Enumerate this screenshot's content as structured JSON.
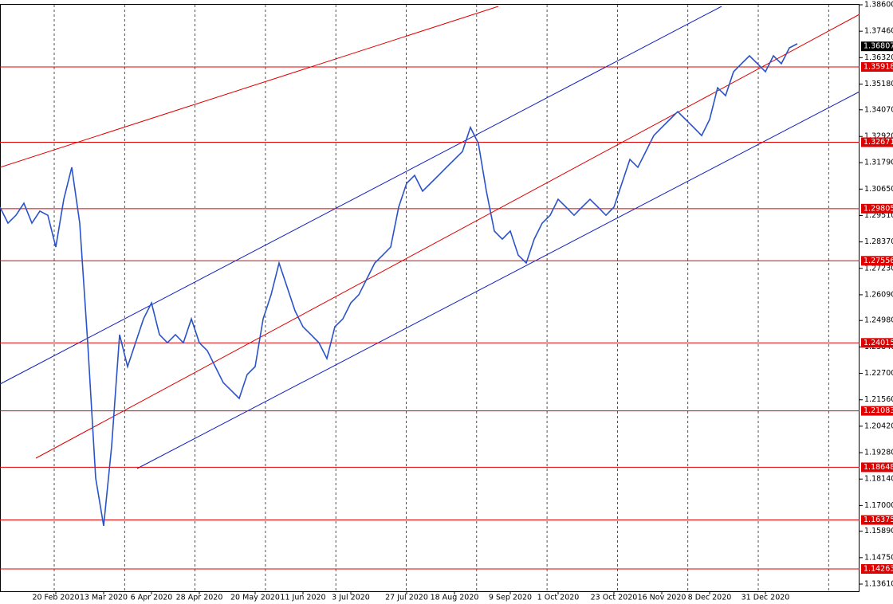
{
  "chart_data": {
    "type": "line",
    "categories": [
      null,
      null,
      null,
      null,
      null,
      null,
      null,
      "20 Feb 2020",
      null,
      null,
      null,
      null,
      null,
      "13 Mar 2020",
      null,
      null,
      null,
      null,
      null,
      "6 Apr 2020",
      null,
      null,
      null,
      null,
      null,
      "28 Apr 2020",
      null,
      null,
      null,
      null,
      null,
      null,
      "20 May 2020",
      null,
      null,
      null,
      null,
      null,
      "11 Jun 2020",
      null,
      null,
      null,
      null,
      null,
      "3 Jul 2020",
      null,
      null,
      null,
      null,
      null,
      null,
      "27 Jul 2020",
      null,
      null,
      null,
      null,
      null,
      "18 Aug 2020",
      null,
      null,
      null,
      null,
      null,
      null,
      "9 Sep 2020",
      null,
      null,
      null,
      null,
      null,
      "1 Oct 2020",
      null,
      null,
      null,
      null,
      null,
      null,
      "23 Oct 2020",
      null,
      null,
      null,
      null,
      null,
      "16 Nov 2020",
      null,
      null,
      null,
      null,
      null,
      "8 Dec 2020",
      null,
      null,
      null,
      null,
      null,
      null,
      "31 Dec 2020",
      null,
      null,
      null,
      null
    ],
    "series": [
      {
        "color": "#2a52c9",
        "values": [
          1.2987,
          1.2918,
          1.2952,
          1.3004,
          1.2918,
          1.297,
          1.2952,
          1.2815,
          1.3021,
          1.3159,
          1.2918,
          1.2402,
          1.1818,
          1.1612,
          1.1955,
          1.2437,
          1.2299,
          1.2402,
          1.2505,
          1.2574,
          1.2437,
          1.2402,
          1.2437,
          1.2402,
          1.2505,
          1.2402,
          1.2368,
          1.2299,
          1.223,
          1.2196,
          1.2162,
          1.2265,
          1.2299,
          1.2505,
          1.2609,
          1.2746,
          1.2643,
          1.254,
          1.2471,
          1.2437,
          1.2402,
          1.2334,
          1.2471,
          1.2505,
          1.2574,
          1.2609,
          1.2677,
          1.2746,
          1.278,
          1.2815,
          1.2987,
          1.309,
          1.3124,
          1.3056,
          1.309,
          1.3124,
          1.3159,
          1.3193,
          1.3227,
          1.3331,
          1.3262,
          1.3056,
          1.2884,
          1.2849,
          1.2884,
          1.278,
          1.2746,
          1.2849,
          1.2918,
          1.2952,
          1.3021,
          1.2987,
          1.2952,
          1.2987,
          1.3021,
          1.2987,
          1.2952,
          1.2987,
          1.309,
          1.3193,
          1.3159,
          1.3227,
          1.3296,
          1.3331,
          1.3365,
          1.3399,
          1.3365,
          1.3331,
          1.3296,
          1.3365,
          1.3502,
          1.3468,
          1.3571,
          1.3606,
          1.364,
          1.3606,
          1.3571,
          1.364,
          1.3606,
          1.3674,
          1.3692
        ]
      }
    ],
    "ylim": [
      1.1361,
      1.386
    ],
    "yticks": [
      {
        "value": 1.386,
        "label": "1.38600"
      },
      {
        "value": 1.3746,
        "label": "1.37460"
      },
      {
        "value": 1.3632,
        "label": "1.36320"
      },
      {
        "value": 1.3518,
        "label": "1.35180"
      },
      {
        "value": 1.3407,
        "label": "1.34070"
      },
      {
        "value": 1.3292,
        "label": "1.32920"
      },
      {
        "value": 1.3179,
        "label": "1.31790"
      },
      {
        "value": 1.3065,
        "label": "1.30650"
      },
      {
        "value": 1.2951,
        "label": "1.29510"
      },
      {
        "value": 1.2837,
        "label": "1.28370"
      },
      {
        "value": 1.2723,
        "label": "1.27230"
      },
      {
        "value": 1.2609,
        "label": "1.26090"
      },
      {
        "value": 1.2498,
        "label": "1.24980"
      },
      {
        "value": 1.2384,
        "label": "1.23840"
      },
      {
        "value": 1.227,
        "label": "1.22700"
      },
      {
        "value": 1.2156,
        "label": "1.21560"
      },
      {
        "value": 1.2042,
        "label": "1.20420"
      },
      {
        "value": 1.1928,
        "label": "1.19280"
      },
      {
        "value": 1.1814,
        "label": "1.18140"
      },
      {
        "value": 1.17,
        "label": "1.17000"
      },
      {
        "value": 1.1589,
        "label": "1.15890"
      },
      {
        "value": 1.1475,
        "label": "1.14750"
      },
      {
        "value": 1.1361,
        "label": "1.13610"
      }
    ],
    "levels": [
      1.35918,
      1.32671,
      1.29805,
      1.27556,
      1.24015,
      1.21083,
      1.18648,
      1.16375,
      1.14263
    ],
    "level_color": "#e00000",
    "current_price": 1.36807
  }
}
